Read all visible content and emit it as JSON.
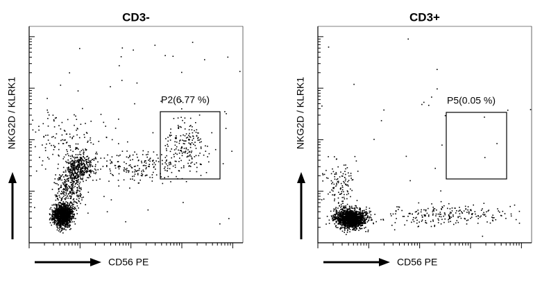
{
  "chart_data": [
    {
      "type": "scatter",
      "title": "CD3-",
      "x_label": "CD56 PE",
      "y_label": "NKG2D / KLRK1",
      "annotation": "P2(6.77 %)"
    },
    {
      "type": "scatter",
      "title": "CD3+",
      "x_label": "CD56 PE",
      "y_label": "NKG2D / KLRK1",
      "annotation": "P5(0.05 %)"
    }
  ]
}
